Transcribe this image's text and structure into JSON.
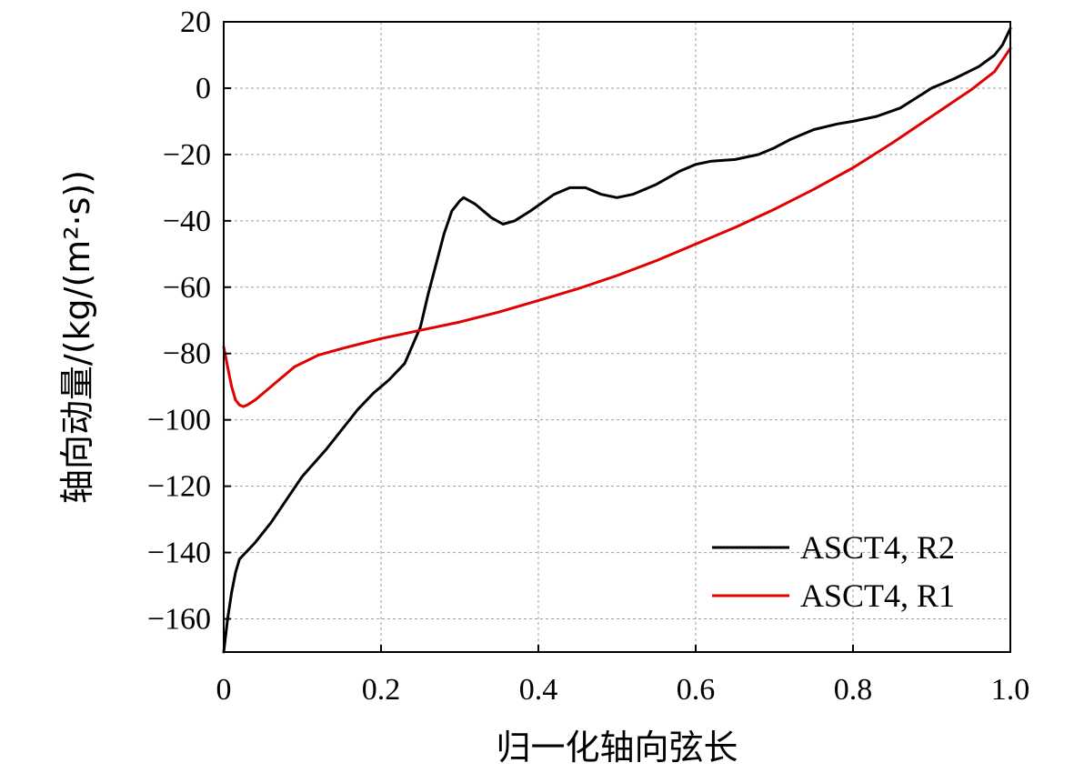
{
  "chart_data": {
    "type": "line",
    "title": "",
    "xlabel": "归一化轴向弦长",
    "ylabel": "轴向动量/(kg/(m²·s))",
    "xlim": [
      0,
      1.0
    ],
    "ylim": [
      -170,
      20
    ],
    "x_ticks": [
      0,
      0.2,
      0.4,
      0.6,
      0.8,
      1.0
    ],
    "x_tick_labels": [
      "0",
      "0.2",
      "0.4",
      "0.6",
      "0.8",
      "1.0"
    ],
    "y_ticks": [
      20,
      0,
      -20,
      -40,
      -60,
      -80,
      -100,
      -120,
      -140,
      -160
    ],
    "y_tick_labels": [
      "20",
      "0",
      "−20",
      "−40",
      "−60",
      "−80",
      "−100",
      "−120",
      "−140",
      "−160"
    ],
    "grid": true,
    "legend_position": "bottom-right",
    "series": [
      {
        "name": "ASCT4, R2",
        "color": "#000000",
        "x": [
          0,
          0.005,
          0.01,
          0.015,
          0.02,
          0.04,
          0.06,
          0.08,
          0.1,
          0.13,
          0.15,
          0.17,
          0.19,
          0.21,
          0.23,
          0.25,
          0.26,
          0.27,
          0.28,
          0.29,
          0.3,
          0.305,
          0.32,
          0.34,
          0.355,
          0.37,
          0.39,
          0.42,
          0.44,
          0.46,
          0.48,
          0.5,
          0.52,
          0.55,
          0.58,
          0.6,
          0.62,
          0.65,
          0.68,
          0.7,
          0.72,
          0.75,
          0.78,
          0.8,
          0.83,
          0.86,
          0.88,
          0.9,
          0.93,
          0.96,
          0.98,
          0.99,
          1.0
        ],
        "y": [
          -170,
          -160,
          -152,
          -146,
          -142,
          -137,
          -131,
          -124,
          -117,
          -109,
          -103,
          -97,
          -92,
          -88,
          -83,
          -72,
          -62,
          -53,
          -44,
          -37,
          -34,
          -33,
          -35,
          -39,
          -41,
          -40,
          -37,
          -32,
          -30,
          -30,
          -32,
          -33,
          -32,
          -29,
          -25,
          -23,
          -22,
          -21.5,
          -20,
          -18,
          -15.5,
          -12.5,
          -10.8,
          -10,
          -8.5,
          -6,
          -3,
          0,
          3,
          6.5,
          10,
          13,
          18
        ]
      },
      {
        "name": "ASCT4, R1",
        "color": "#e00000",
        "x": [
          0,
          0.005,
          0.01,
          0.015,
          0.02,
          0.025,
          0.03,
          0.04,
          0.05,
          0.07,
          0.09,
          0.12,
          0.15,
          0.2,
          0.25,
          0.3,
          0.35,
          0.4,
          0.45,
          0.5,
          0.55,
          0.6,
          0.65,
          0.7,
          0.75,
          0.8,
          0.85,
          0.9,
          0.95,
          0.98,
          1.0
        ],
        "y": [
          -78,
          -84,
          -90,
          -94,
          -95.5,
          -96,
          -95.5,
          -94,
          -92,
          -88,
          -84,
          -80.5,
          -78.5,
          -75.5,
          -73,
          -70.5,
          -67.5,
          -64,
          -60.5,
          -56.5,
          -52,
          -47,
          -42,
          -36.5,
          -30.5,
          -24,
          -16.5,
          -8.5,
          -0.5,
          5,
          12
        ]
      }
    ]
  }
}
